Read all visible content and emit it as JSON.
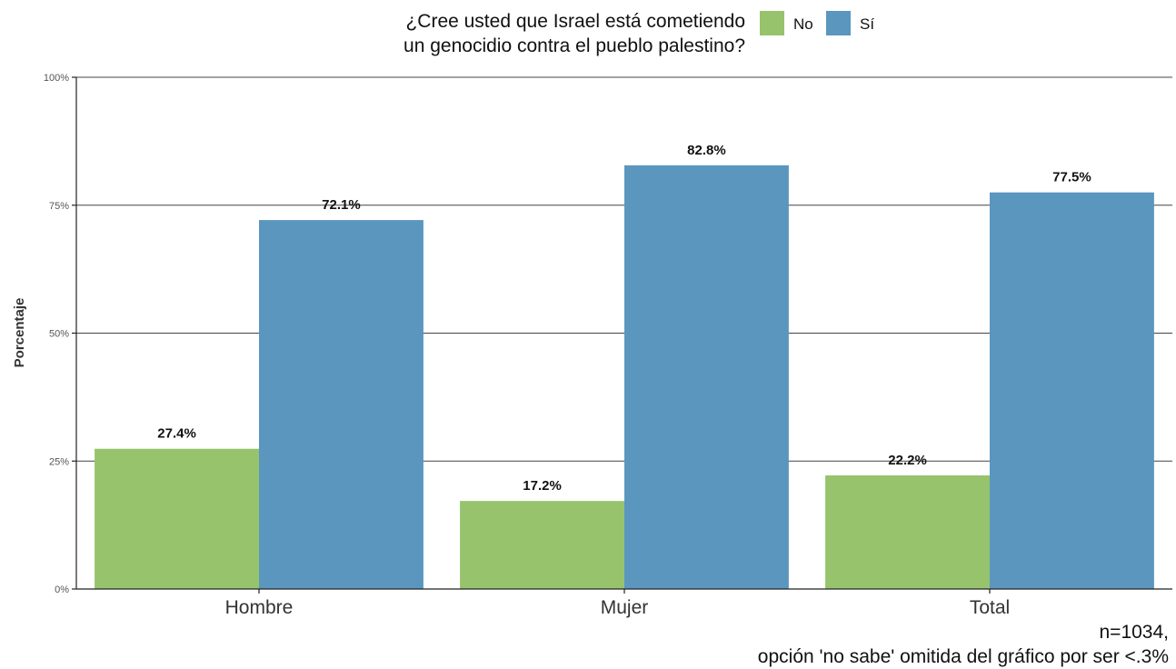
{
  "chart_data": {
    "type": "bar",
    "title_lines": [
      "¿Cree usted que Israel está cometiendo",
      "un genocidio contra el pueblo palestino?"
    ],
    "ylabel": "Porcentaje",
    "xlabel": "",
    "categories": [
      "Hombre",
      "Mujer",
      "Total"
    ],
    "series": [
      {
        "name": "No",
        "color": "#97c36c",
        "values": [
          27.4,
          17.2,
          22.2
        ],
        "labels": [
          "27.4%",
          "17.2%",
          "22.2%"
        ]
      },
      {
        "name": "Sí",
        "color": "#5b96bf",
        "values": [
          72.1,
          82.8,
          77.5
        ],
        "labels": [
          "72.1%",
          "82.8%",
          "77.5%"
        ]
      }
    ],
    "ylim": [
      0,
      100
    ],
    "yticks": [
      0,
      25,
      50,
      75,
      100
    ],
    "ytick_labels": [
      "0%",
      "25%",
      "50%",
      "75%",
      "100%"
    ],
    "grid": true,
    "legend_position": "top",
    "caption_lines": [
      "n=1034,",
      "opción 'no sabe' omitida del gráfico por ser <.3%"
    ]
  }
}
